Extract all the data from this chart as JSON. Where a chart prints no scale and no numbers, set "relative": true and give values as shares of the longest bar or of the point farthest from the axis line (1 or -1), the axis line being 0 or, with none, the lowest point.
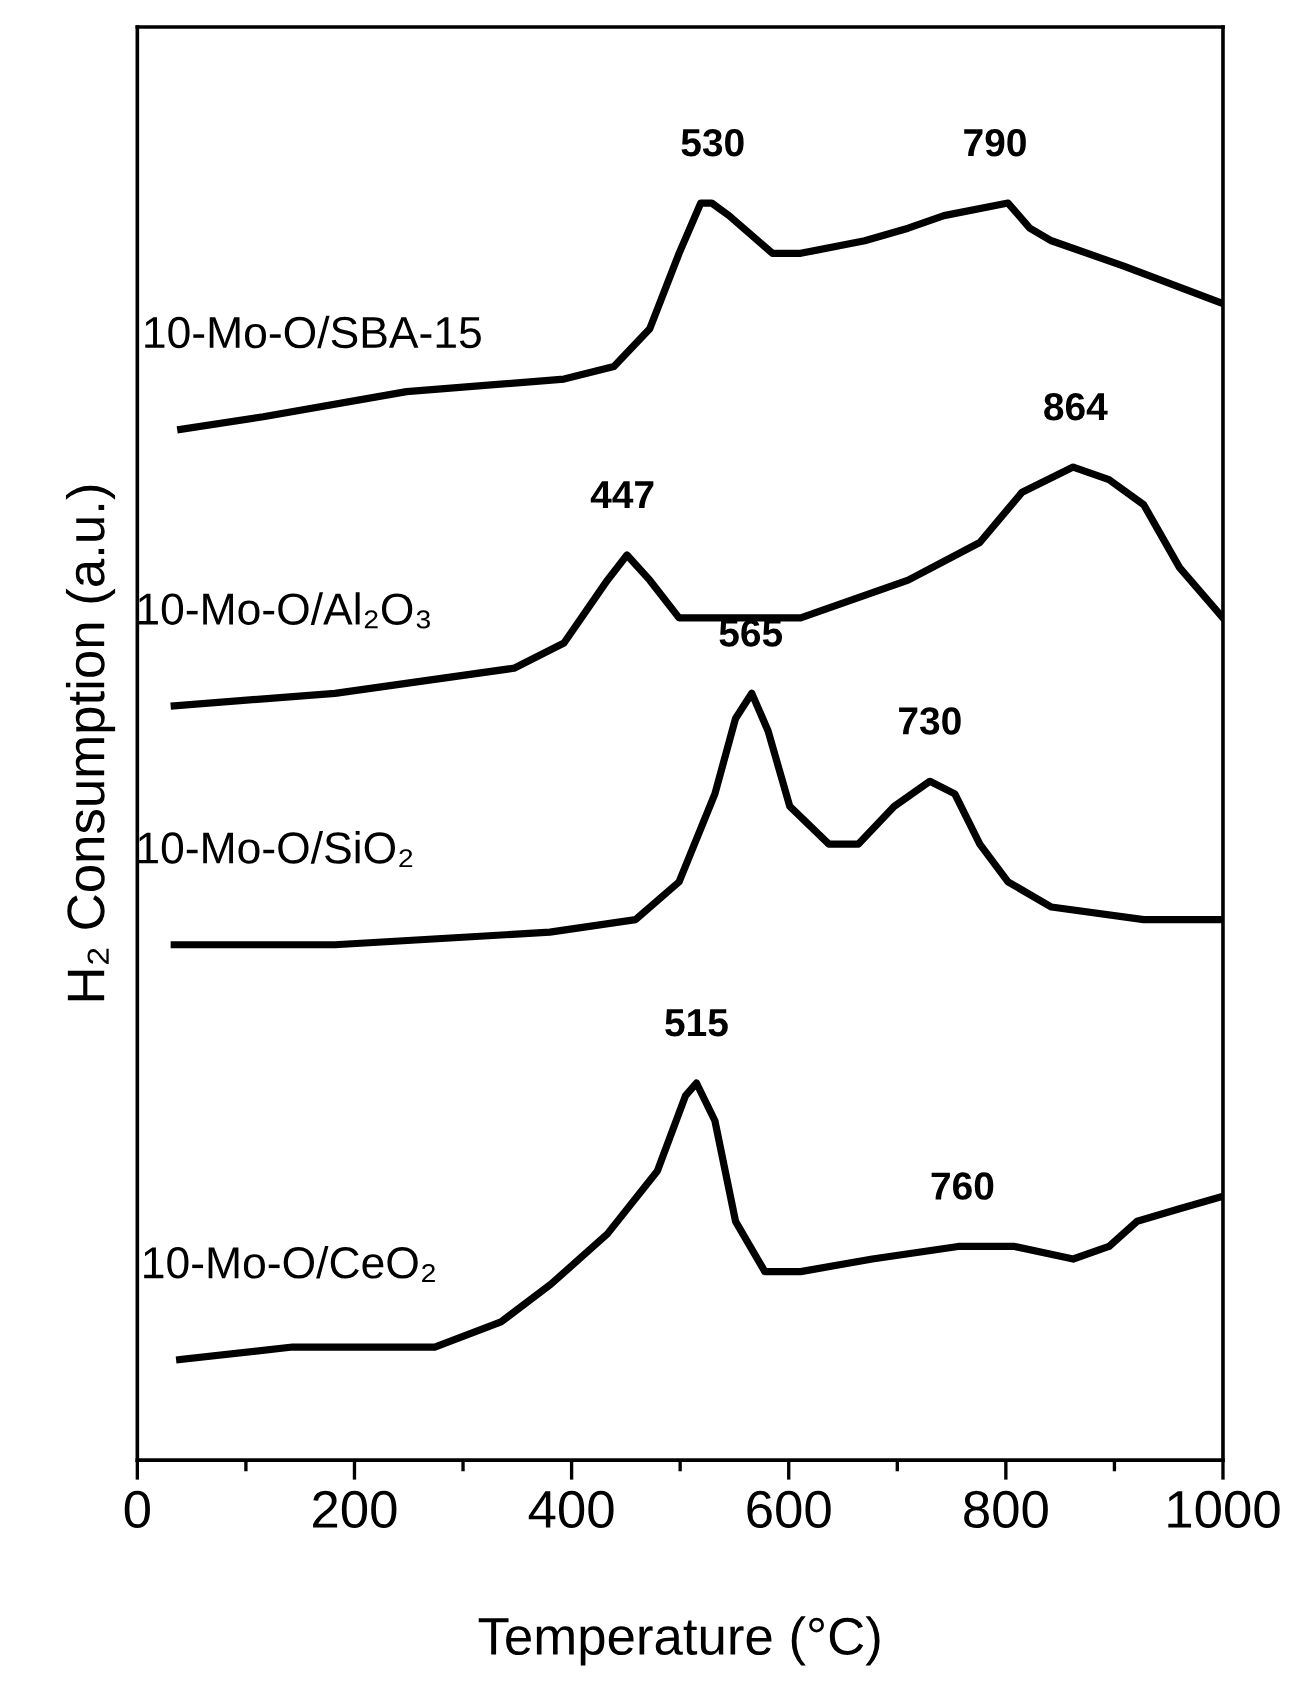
{
  "chart_data": {
    "type": "line",
    "xlabel": "Temperature (°C)",
    "ylabel": "H₂ Consumption (a.u.)",
    "relative": true,
    "xlim": [
      0,
      1000
    ],
    "xticks": [
      0,
      {
        "value": 100,
        "label": null
      },
      200,
      {
        "value": 300,
        "label": null
      },
      400,
      {
        "value": 500,
        "label": null
      },
      600,
      {
        "value": 700,
        "label": null
      },
      800,
      {
        "value": 900,
        "label": null
      },
      1000
    ],
    "tick_labels": "x",
    "grid": false,
    "legend": false,
    "marker": "none",
    "line_style": "solid",
    "series": [
      {
        "name": "10-Mo-O/SBA-15",
        "color": "#000000",
        "x": [
          40,
          116,
          248,
          393,
          439,
          472,
          499,
          519,
          529,
          545,
          585,
          611,
          670,
          710,
          743,
          802,
          822,
          842,
          908,
          1000
        ],
        "values": [
          0.82,
          0.83,
          0.85,
          0.86,
          0.87,
          0.9,
          0.96,
          1.0,
          1.0,
          0.99,
          0.96,
          0.96,
          0.97,
          0.98,
          0.99,
          1.0,
          0.98,
          0.97,
          0.95,
          0.92
        ]
      },
      {
        "name": "10-Mo-O/Al₂O₃",
        "color": "#000000",
        "x": [
          34,
          182,
          347,
          393,
          433,
          451,
          472,
          499,
          545,
          611,
          710,
          776,
          815,
          862,
          895,
          927,
          960,
          1000
        ],
        "values": [
          0.6,
          0.61,
          0.63,
          0.65,
          0.7,
          0.72,
          0.7,
          0.67,
          0.67,
          0.67,
          0.7,
          0.73,
          0.77,
          0.79,
          0.78,
          0.76,
          0.71,
          0.67
        ]
      },
      {
        "name": "10-Mo-O/SiO₂",
        "color": "#000000",
        "x": [
          34,
          182,
          380,
          459,
          499,
          532,
          551,
          566,
          581,
          601,
          637,
          664,
          697,
          730,
          753,
          776,
          802,
          842,
          927,
          1000
        ],
        "values": [
          0.41,
          0.41,
          0.42,
          0.43,
          0.46,
          0.53,
          0.59,
          0.61,
          0.58,
          0.52,
          0.49,
          0.49,
          0.52,
          0.54,
          0.53,
          0.49,
          0.46,
          0.44,
          0.43,
          0.43
        ]
      },
      {
        "name": "10-Mo-O/CeO₂",
        "color": "#000000",
        "x": [
          39,
          143,
          274,
          335,
          381,
          433,
          479,
          505,
          515,
          532,
          551,
          578,
          611,
          677,
          756,
          808,
          862,
          895,
          921,
          960,
          1000
        ],
        "values": [
          0.08,
          0.09,
          0.09,
          0.11,
          0.14,
          0.18,
          0.23,
          0.29,
          0.3,
          0.27,
          0.19,
          0.15,
          0.15,
          0.16,
          0.17,
          0.17,
          0.16,
          0.17,
          0.19,
          0.2,
          0.21
        ]
      }
    ],
    "annotations": [
      {
        "text": "530",
        "x": 530,
        "y": 1.0
      },
      {
        "text": "790",
        "x": 790,
        "y": 1.0
      },
      {
        "text": "447",
        "x": 447,
        "y": 0.72
      },
      {
        "text": "864",
        "x": 864,
        "y": 0.79
      },
      {
        "text": "565",
        "x": 565,
        "y": 0.61
      },
      {
        "text": "730",
        "x": 730,
        "y": 0.54
      },
      {
        "text": "515",
        "x": 515,
        "y": 0.3
      },
      {
        "text": "760",
        "x": 760,
        "y": 0.17
      }
    ]
  }
}
